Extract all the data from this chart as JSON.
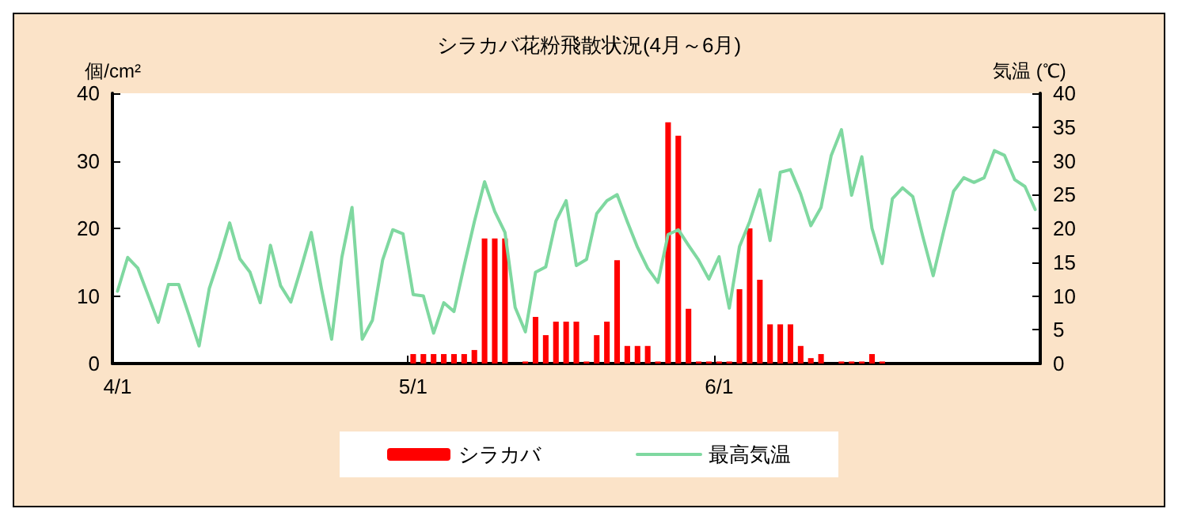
{
  "chart_data": {
    "type": "bar",
    "title": "シラカバ花粉飛散状況(4月～6月)",
    "ylabel": "個/cm²",
    "y2label": "気温 (℃)",
    "categories": [
      "4/1",
      null,
      null,
      null,
      null,
      null,
      null,
      null,
      null,
      null,
      null,
      null,
      null,
      null,
      null,
      null,
      null,
      null,
      null,
      null,
      null,
      null,
      null,
      null,
      null,
      null,
      null,
      null,
      null,
      "5/1",
      null,
      null,
      null,
      null,
      null,
      null,
      null,
      null,
      null,
      null,
      null,
      null,
      null,
      null,
      null,
      null,
      null,
      null,
      null,
      null,
      null,
      null,
      null,
      null,
      null,
      null,
      null,
      null,
      null,
      "6/1",
      null,
      null,
      null,
      null,
      null,
      null,
      null,
      null,
      null,
      null,
      null,
      null,
      null,
      null,
      null,
      null,
      null,
      null,
      null,
      null,
      null,
      null,
      null,
      null,
      null,
      null,
      null,
      null,
      null,
      null,
      null
    ],
    "series": [
      {
        "name": "シラカバ",
        "color": "#ff0000",
        "values": [
          null,
          null,
          null,
          null,
          null,
          null,
          null,
          null,
          null,
          null,
          null,
          null,
          null,
          null,
          null,
          null,
          null,
          null,
          null,
          null,
          null,
          null,
          null,
          null,
          null,
          null,
          null,
          null,
          null,
          1.4,
          1.4,
          1.4,
          1.4,
          1.4,
          1.4,
          2,
          18.5,
          18.5,
          18.5,
          null,
          0.3,
          6.9,
          4.2,
          6.2,
          6.2,
          6.2,
          0.3,
          4.2,
          6.2,
          15.3,
          2.6,
          2.6,
          2.6,
          0.3,
          35.7,
          33.7,
          8.1,
          0.3,
          0.3,
          0.3,
          0.3,
          11,
          20,
          12.4,
          5.8,
          5.8,
          5.8,
          2.6,
          0.8,
          1.4,
          null,
          0.3,
          0.3,
          0.3,
          1.4,
          0.3,
          null,
          null,
          null,
          null,
          null,
          null,
          null,
          null,
          null,
          null,
          null,
          null,
          null,
          null,
          null
        ]
      },
      {
        "name": "最高気温",
        "type": "line",
        "axis": "y2",
        "color": "#7fd8a0",
        "values": [
          10.7,
          15.7,
          14.1,
          10.1,
          6.1,
          11.7,
          11.7,
          7.2,
          2.6,
          11.1,
          15.7,
          20.8,
          15.5,
          13.5,
          9,
          17.5,
          11.5,
          9.1,
          14.1,
          19.4,
          11.1,
          3.6,
          15.7,
          23.1,
          3.6,
          6.4,
          15.3,
          19.8,
          19.2,
          10.2,
          10,
          4.5,
          9,
          7.7,
          14.5,
          21,
          26.9,
          22.5,
          19.4,
          8.3,
          4.7,
          13.5,
          14.3,
          21.1,
          24.1,
          14.5,
          15.4,
          22.2,
          24.1,
          25,
          21,
          17.2,
          14.1,
          12,
          19.1,
          19.8,
          17.5,
          15.3,
          12.5,
          15.8,
          8.2,
          17.3,
          21,
          25.7,
          18.2,
          28.3,
          28.7,
          25.1,
          20.4,
          23.1,
          30.8,
          34.6,
          24.9,
          30.6,
          20,
          14.8,
          24.4,
          26,
          24.7,
          18.7,
          13,
          19.4,
          25.5,
          27.5,
          26.8,
          27.5,
          31.5,
          30.8,
          27.2,
          26.2,
          22.8
        ]
      }
    ],
    "ylim": [
      0,
      40
    ],
    "yticks": [
      0,
      10,
      20,
      30,
      40
    ],
    "y2lim": [
      0,
      40
    ],
    "y2ticks": [
      0,
      5,
      10,
      15,
      20,
      25,
      30,
      35,
      40
    ],
    "grid": false,
    "legend": "bottom",
    "marker": "none",
    "line_style": "solid"
  }
}
